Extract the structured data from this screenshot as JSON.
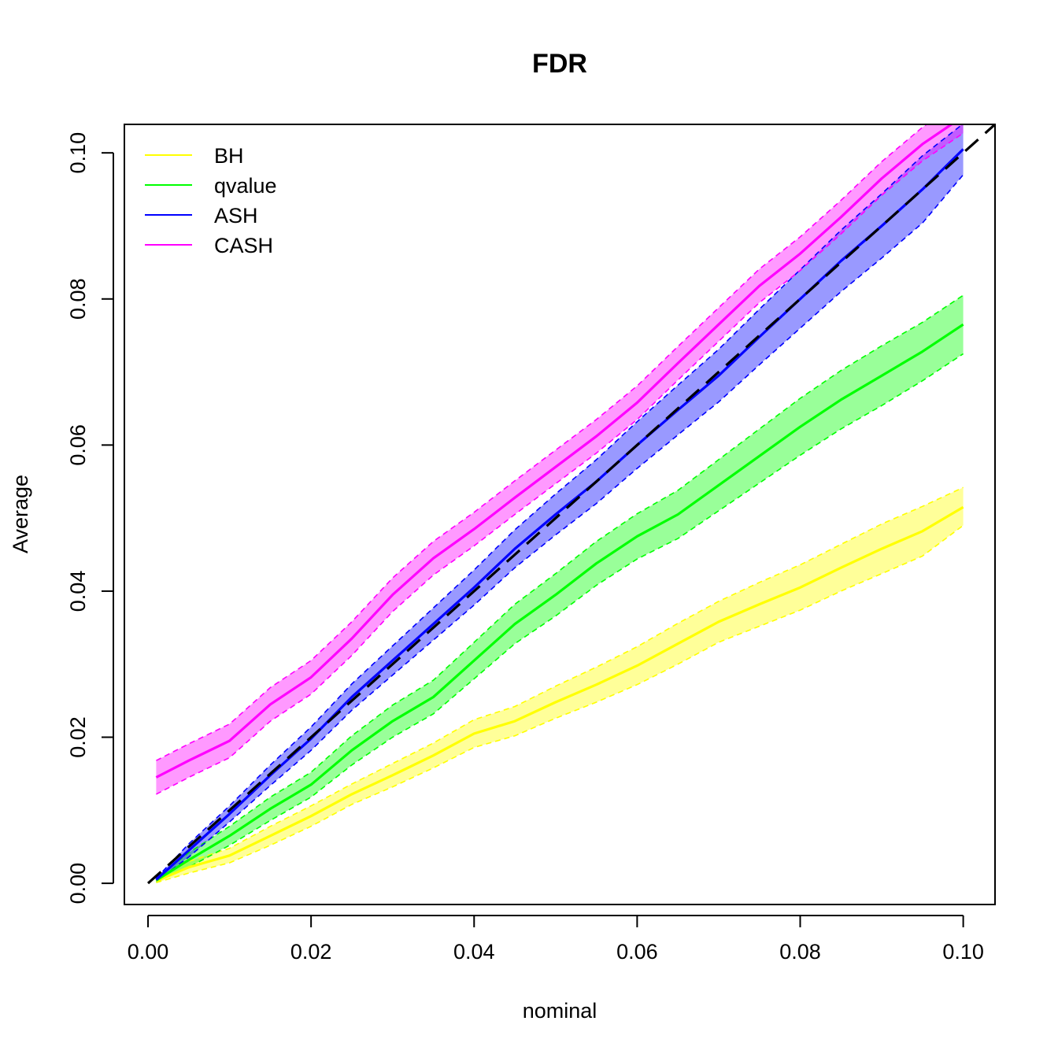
{
  "chart_data": {
    "type": "line",
    "title": "FDR",
    "xlabel": "nominal",
    "ylabel": "Average",
    "xlim": [
      -0.0029,
      0.1039
    ],
    "ylim": [
      -0.0029,
      0.1039
    ],
    "x_ticks": [
      "0.00",
      "0.02",
      "0.04",
      "0.06",
      "0.08",
      "0.10"
    ],
    "y_ticks": [
      "0.00",
      "0.02",
      "0.04",
      "0.06",
      "0.08",
      "0.10"
    ],
    "grid": false,
    "legend_position": "top-left",
    "reference_line": {
      "style": "dashed",
      "color": "#000000",
      "from": [
        0,
        0
      ],
      "to": [
        0.1039,
        0.1039
      ]
    },
    "x": [
      0.001,
      0.005,
      0.01,
      0.015,
      0.02,
      0.025,
      0.03,
      0.035,
      0.04,
      0.045,
      0.05,
      0.055,
      0.06,
      0.065,
      0.07,
      0.075,
      0.08,
      0.085,
      0.09,
      0.095,
      0.1
    ],
    "series": [
      {
        "name": "BH",
        "color": "#FFFF00",
        "values": [
          0.0003,
          0.0022,
          0.0038,
          0.0065,
          0.0092,
          0.0122,
          0.0148,
          0.0175,
          0.0205,
          0.0222,
          0.0248,
          0.0272,
          0.0298,
          0.0328,
          0.0358,
          0.0382,
          0.0405,
          0.0432,
          0.0458,
          0.0482,
          0.0515
        ],
        "lower": [
          0.0001,
          0.0014,
          0.0028,
          0.0052,
          0.0078,
          0.0108,
          0.0132,
          0.0158,
          0.0186,
          0.0202,
          0.0226,
          0.0248,
          0.0272,
          0.03,
          0.033,
          0.0352,
          0.0374,
          0.04,
          0.0424,
          0.0448,
          0.049
        ],
        "upper": [
          0.0006,
          0.003,
          0.0048,
          0.0078,
          0.0106,
          0.0136,
          0.0164,
          0.0192,
          0.0224,
          0.0242,
          0.027,
          0.0296,
          0.0324,
          0.0356,
          0.0386,
          0.0412,
          0.0436,
          0.0464,
          0.0492,
          0.0516,
          0.0542
        ]
      },
      {
        "name": "qvalue",
        "color": "#00FF00",
        "values": [
          0.0004,
          0.0032,
          0.0065,
          0.0102,
          0.0135,
          0.0182,
          0.0222,
          0.0255,
          0.0305,
          0.0355,
          0.0395,
          0.0438,
          0.0475,
          0.0505,
          0.0545,
          0.0585,
          0.0625,
          0.0662,
          0.0695,
          0.0728,
          0.0765
        ],
        "lower": [
          0.0002,
          0.0022,
          0.0052,
          0.0086,
          0.0118,
          0.0162,
          0.02,
          0.0232,
          0.028,
          0.0328,
          0.0366,
          0.0408,
          0.0444,
          0.0472,
          0.051,
          0.0548,
          0.0586,
          0.0622,
          0.0654,
          0.0688,
          0.0725
        ],
        "upper": [
          0.0006,
          0.0042,
          0.0078,
          0.0118,
          0.0152,
          0.0202,
          0.0244,
          0.0278,
          0.033,
          0.0382,
          0.0424,
          0.0468,
          0.0506,
          0.0538,
          0.058,
          0.0622,
          0.0664,
          0.0702,
          0.0736,
          0.0768,
          0.0805
        ]
      },
      {
        "name": "ASH",
        "color": "#0000FF",
        "values": [
          0.0005,
          0.0045,
          0.0095,
          0.0148,
          0.0198,
          0.0255,
          0.0305,
          0.0355,
          0.0405,
          0.0458,
          0.0505,
          0.055,
          0.06,
          0.0648,
          0.0695,
          0.0748,
          0.08,
          0.0852,
          0.09,
          0.095,
          0.1005
        ],
        "lower": [
          0.0003,
          0.0036,
          0.0084,
          0.0134,
          0.0182,
          0.0237,
          0.0285,
          0.0333,
          0.0381,
          0.0432,
          0.0477,
          0.052,
          0.0568,
          0.0614,
          0.0659,
          0.071,
          0.076,
          0.081,
          0.0856,
          0.0904,
          0.097
        ],
        "upper": [
          0.0007,
          0.0054,
          0.0106,
          0.0162,
          0.0214,
          0.0273,
          0.0325,
          0.0377,
          0.0429,
          0.0484,
          0.0533,
          0.058,
          0.0632,
          0.0682,
          0.0731,
          0.0786,
          0.084,
          0.0894,
          0.0944,
          0.0996,
          0.104
        ]
      },
      {
        "name": "CASH",
        "color": "#FF00FF",
        "values": [
          0.0145,
          0.0168,
          0.0195,
          0.0245,
          0.0282,
          0.0335,
          0.0395,
          0.0445,
          0.0485,
          0.0528,
          0.057,
          0.0612,
          0.0658,
          0.0712,
          0.0765,
          0.0818,
          0.0862,
          0.0912,
          0.0965,
          0.1012,
          0.105
        ],
        "lower": [
          0.0122,
          0.0145,
          0.0172,
          0.0222,
          0.0259,
          0.0312,
          0.0372,
          0.0422,
          0.0462,
          0.0505,
          0.0547,
          0.0589,
          0.0635,
          0.0689,
          0.0742,
          0.0795,
          0.0839,
          0.0889,
          0.0942,
          0.0989,
          0.1027
        ],
        "upper": [
          0.0168,
          0.0191,
          0.0218,
          0.0268,
          0.0305,
          0.0358,
          0.0418,
          0.0468,
          0.0508,
          0.0551,
          0.0593,
          0.0635,
          0.0681,
          0.0735,
          0.0788,
          0.0841,
          0.0885,
          0.0935,
          0.0988,
          0.1035,
          0.1073
        ]
      }
    ]
  }
}
